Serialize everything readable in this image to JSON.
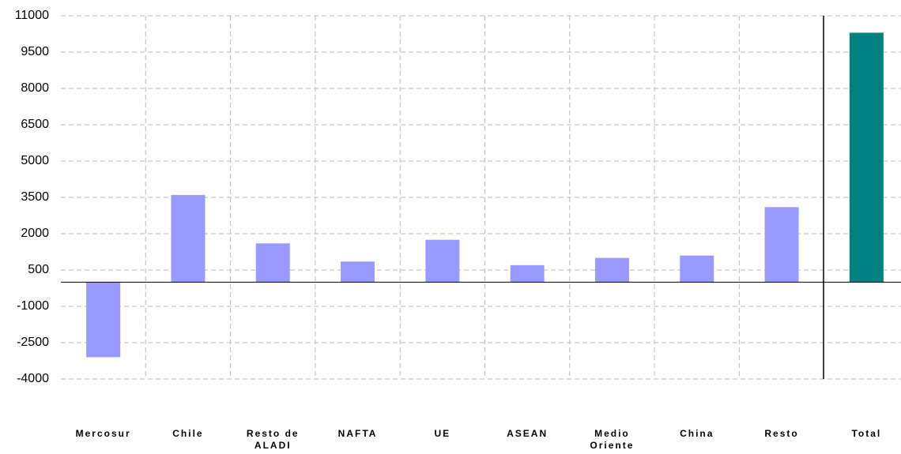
{
  "chart_data": {
    "type": "bar",
    "categories": [
      "Mercosur",
      "Chile",
      "Resto de ALADI",
      "NAFTA",
      "UE",
      "ASEAN",
      "Medio Oriente",
      "China",
      "Resto",
      "Total"
    ],
    "values": [
      -3100,
      3600,
      1600,
      850,
      1750,
      700,
      1000,
      1100,
      3100,
      10300
    ],
    "colors": [
      "#9999ff",
      "#9999ff",
      "#9999ff",
      "#9999ff",
      "#9999ff",
      "#9999ff",
      "#9999ff",
      "#9999ff",
      "#9999ff",
      "#008080"
    ],
    "ylim": [
      -4000,
      11000
    ],
    "yticks": [
      -4000,
      -2500,
      -1000,
      500,
      2000,
      3500,
      5000,
      6500,
      8000,
      9500,
      11000
    ],
    "grid": true
  }
}
